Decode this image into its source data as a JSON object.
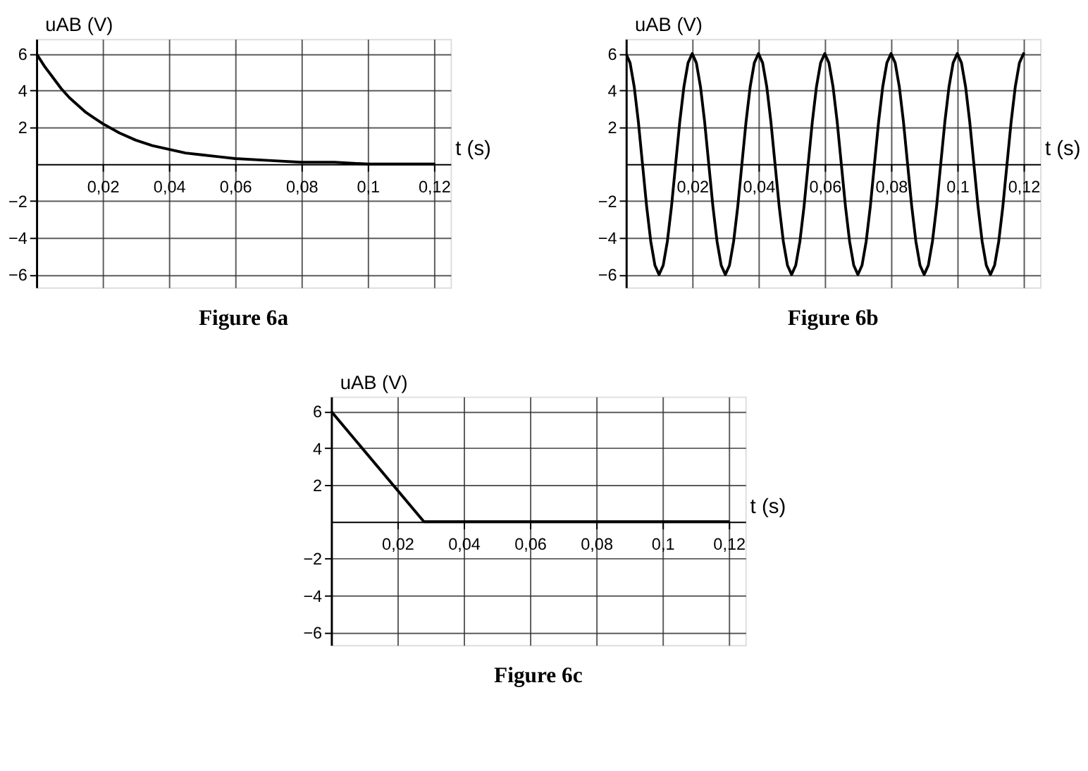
{
  "chart_data": [
    {
      "type": "line",
      "title": "Figure 6a",
      "xlabel": "t (s)",
      "ylabel": "uAB (V)",
      "grid": true,
      "xlim": [
        0,
        0.125
      ],
      "ylim": [
        -6.7,
        6.8
      ],
      "xticks": [
        {
          "value": 0.02,
          "label": "0,02"
        },
        {
          "value": 0.04,
          "label": "0,04"
        },
        {
          "value": 0.06,
          "label": "0,06"
        },
        {
          "value": 0.08,
          "label": "0,08"
        },
        {
          "value": 0.1,
          "label": "0,1"
        },
        {
          "value": 0.12,
          "label": "0,12"
        }
      ],
      "yticks": [
        -6,
        -4,
        -2,
        2,
        4,
        6
      ],
      "x": [
        0,
        0.0025,
        0.005,
        0.0075,
        0.01,
        0.0125,
        0.015,
        0.0175,
        0.02,
        0.025,
        0.03,
        0.035,
        0.04,
        0.045,
        0.05,
        0.055,
        0.06,
        0.07,
        0.08,
        0.09,
        0.1,
        0.11,
        0.12
      ],
      "series": [
        {
          "color": "#000000",
          "values": [
            6,
            5.3,
            4.7,
            4.1,
            3.6,
            3.2,
            2.8,
            2.5,
            2.2,
            1.7,
            1.3,
            1.0,
            0.8,
            0.6,
            0.5,
            0.4,
            0.3,
            0.2,
            0.1,
            0.1,
            0,
            0,
            0
          ]
        }
      ]
    },
    {
      "type": "line",
      "title": "Figure 6b",
      "xlabel": "t (s)",
      "ylabel": "uAB (V)",
      "grid": true,
      "xlim": [
        0,
        0.125
      ],
      "ylim": [
        -6.7,
        6.8
      ],
      "xticks": [
        {
          "value": 0.02,
          "label": "0,02"
        },
        {
          "value": 0.04,
          "label": "0,04"
        },
        {
          "value": 0.06,
          "label": "0,06"
        },
        {
          "value": 0.08,
          "label": "0,08"
        },
        {
          "value": 0.1,
          "label": "0,1"
        },
        {
          "value": 0.12,
          "label": "0,12"
        }
      ],
      "yticks": [
        -6,
        -4,
        -2,
        2,
        4,
        6
      ],
      "x": [
        0,
        0.00125,
        0.0025,
        0.00375,
        0.005,
        0.00625,
        0.0075,
        0.00875,
        0.01,
        0.01125,
        0.0125,
        0.01375,
        0.015,
        0.01625,
        0.0175,
        0.01875,
        0.02,
        0.02125,
        0.0225,
        0.02375,
        0.025,
        0.02625,
        0.0275,
        0.02875,
        0.03,
        0.03125,
        0.0325,
        0.03375,
        0.035,
        0.03625,
        0.0375,
        0.03875,
        0.04,
        0.04125,
        0.0425,
        0.04375,
        0.045,
        0.04625,
        0.0475,
        0.04875,
        0.05,
        0.05125,
        0.0525,
        0.05375,
        0.055,
        0.05625,
        0.0575,
        0.05875,
        0.06,
        0.06125,
        0.0625,
        0.06375,
        0.065,
        0.06625,
        0.0675,
        0.06875,
        0.07,
        0.07125,
        0.0725,
        0.07375,
        0.075,
        0.07625,
        0.0775,
        0.07875,
        0.08,
        0.08125,
        0.0825,
        0.08375,
        0.085,
        0.08625,
        0.0875,
        0.08875,
        0.09,
        0.09125,
        0.0925,
        0.09375,
        0.095,
        0.09625,
        0.0975,
        0.09875,
        0.1,
        0.10125,
        0.1025,
        0.10375,
        0.105,
        0.10625,
        0.1075,
        0.10875,
        0.11,
        0.11125,
        0.1125,
        0.11375,
        0.115,
        0.11625,
        0.1175,
        0.11875,
        0.12
      ],
      "series": [
        {
          "color": "#000000",
          "values": [
            6,
            5.5,
            4.2,
            2.3,
            0,
            -2.3,
            -4.2,
            -5.5,
            -6,
            -5.5,
            -4.2,
            -2.3,
            0,
            2.3,
            4.2,
            5.5,
            6,
            5.5,
            4.2,
            2.3,
            0,
            -2.3,
            -4.2,
            -5.5,
            -6,
            -5.5,
            -4.2,
            -2.3,
            0,
            2.3,
            4.2,
            5.5,
            6,
            5.5,
            4.2,
            2.3,
            0,
            -2.3,
            -4.2,
            -5.5,
            -6,
            -5.5,
            -4.2,
            -2.3,
            0,
            2.3,
            4.2,
            5.5,
            6,
            5.5,
            4.2,
            2.3,
            0,
            -2.3,
            -4.2,
            -5.5,
            -6,
            -5.5,
            -4.2,
            -2.3,
            0,
            2.3,
            4.2,
            5.5,
            6,
            5.5,
            4.2,
            2.3,
            0,
            -2.3,
            -4.2,
            -5.5,
            -6,
            -5.5,
            -4.2,
            -2.3,
            0,
            2.3,
            4.2,
            5.5,
            6,
            5.5,
            4.2,
            2.3,
            0,
            -2.3,
            -4.2,
            -5.5,
            -6,
            -5.5,
            -4.2,
            -2.3,
            0,
            2.3,
            4.2,
            5.5,
            6
          ]
        }
      ]
    },
    {
      "type": "line",
      "title": "Figure 6c",
      "xlabel": "t (s)",
      "ylabel": "uAB (V)",
      "grid": true,
      "xlim": [
        0,
        0.125
      ],
      "ylim": [
        -6.7,
        6.8
      ],
      "xticks": [
        {
          "value": 0.02,
          "label": "0,02"
        },
        {
          "value": 0.04,
          "label": "0,04"
        },
        {
          "value": 0.06,
          "label": "0,06"
        },
        {
          "value": 0.08,
          "label": "0,08"
        },
        {
          "value": 0.1,
          "label": "0,1"
        },
        {
          "value": 0.12,
          "label": "0,12"
        }
      ],
      "yticks": [
        -6,
        -4,
        -2,
        2,
        4,
        6
      ],
      "x": [
        0,
        0.028,
        0.12
      ],
      "series": [
        {
          "color": "#000000",
          "values": [
            6,
            0,
            0
          ]
        }
      ]
    }
  ]
}
